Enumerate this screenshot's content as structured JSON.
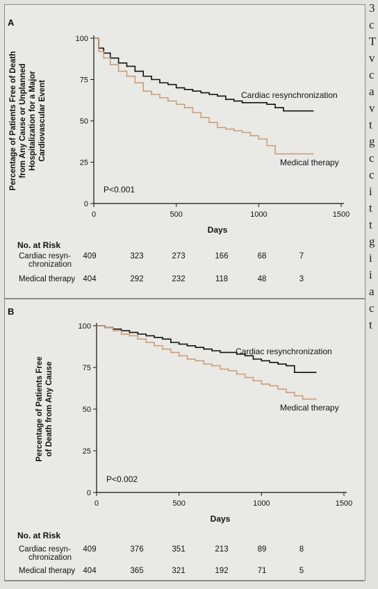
{
  "chart_data": [
    {
      "panel": "A",
      "type": "line",
      "ylabel_lines": [
        "Percentage of Patients Free of Death",
        "from Any Cause or Unplanned",
        "Hospitalization for a Major",
        "Cardiovascular Event"
      ],
      "xlabel": "Days",
      "xlim": [
        0,
        1500
      ],
      "ylim": [
        0,
        100
      ],
      "xticks": [
        0,
        500,
        1000,
        1500
      ],
      "yticks": [
        0,
        25,
        50,
        75,
        100
      ],
      "pvalue": "P<0.001",
      "series": [
        {
          "name": "Cardiac resynchronization",
          "color": "#111111",
          "x": [
            0,
            30,
            60,
            100,
            150,
            200,
            250,
            300,
            350,
            400,
            450,
            500,
            550,
            600,
            650,
            700,
            750,
            800,
            850,
            900,
            950,
            1000,
            1050,
            1100,
            1150,
            1200,
            1250,
            1300,
            1330
          ],
          "y": [
            100,
            94,
            91,
            88,
            85,
            83,
            80,
            77,
            75,
            73,
            72,
            70,
            69,
            68,
            67,
            66,
            65,
            63,
            62,
            61,
            61,
            61,
            60,
            58,
            56,
            56,
            56,
            56,
            56
          ]
        },
        {
          "name": "Medical therapy",
          "color": "#c9966a",
          "x": [
            0,
            30,
            60,
            100,
            150,
            200,
            250,
            300,
            350,
            400,
            450,
            500,
            550,
            600,
            650,
            700,
            750,
            800,
            850,
            900,
            950,
            1000,
            1050,
            1100,
            1150,
            1200,
            1250,
            1300,
            1330
          ],
          "y": [
            100,
            92,
            88,
            84,
            80,
            77,
            73,
            68,
            66,
            64,
            62,
            60,
            58,
            55,
            52,
            49,
            46,
            45,
            44,
            43,
            41,
            39,
            35,
            30,
            30,
            30,
            30,
            30,
            30
          ]
        }
      ],
      "risk_table": {
        "header": "No. at Risk",
        "rows": [
          {
            "label_lines": [
              "Cardiac resyn-",
              "chronization"
            ],
            "values": [
              "409",
              "323",
              "273",
              "166",
              "68",
              "7"
            ]
          },
          {
            "label_lines": [
              "Medical therapy"
            ],
            "values": [
              "404",
              "292",
              "232",
              "118",
              "48",
              "3"
            ]
          }
        ]
      }
    },
    {
      "panel": "B",
      "type": "line",
      "ylabel_lines": [
        "Percentage of Patients Free",
        "of Death from Any Cause"
      ],
      "xlabel": "Days",
      "xlim": [
        0,
        1500
      ],
      "ylim": [
        0,
        100
      ],
      "xticks": [
        0,
        500,
        1000,
        1500
      ],
      "yticks": [
        0,
        25,
        50,
        75,
        100
      ],
      "pvalue": "P<0.002",
      "series": [
        {
          "name": "Cardiac resynchronization",
          "color": "#111111",
          "x": [
            0,
            50,
            100,
            150,
            200,
            250,
            300,
            350,
            400,
            450,
            500,
            550,
            600,
            650,
            700,
            750,
            800,
            850,
            900,
            950,
            1000,
            1050,
            1100,
            1150,
            1200,
            1250,
            1300,
            1330
          ],
          "y": [
            100,
            99,
            98,
            97,
            96,
            95,
            94,
            93,
            92,
            90,
            89,
            88,
            87,
            86,
            85,
            84,
            84,
            83,
            82,
            80,
            79,
            78,
            77,
            76,
            72,
            72,
            72,
            72
          ]
        },
        {
          "name": "Medical therapy",
          "color": "#c9966a",
          "x": [
            0,
            50,
            100,
            150,
            200,
            250,
            300,
            350,
            400,
            450,
            500,
            550,
            600,
            650,
            700,
            750,
            800,
            850,
            900,
            950,
            1000,
            1050,
            1100,
            1150,
            1200,
            1250,
            1300,
            1330
          ],
          "y": [
            100,
            99,
            97,
            95,
            94,
            92,
            90,
            88,
            86,
            84,
            82,
            80,
            79,
            77,
            76,
            74,
            73,
            71,
            69,
            67,
            65,
            64,
            62,
            60,
            58,
            56,
            56,
            56
          ]
        }
      ],
      "risk_table": {
        "header": "No. at Risk",
        "rows": [
          {
            "label_lines": [
              "Cardiac resyn-",
              "chronization"
            ],
            "values": [
              "409",
              "376",
              "351",
              "213",
              "89",
              "8"
            ]
          },
          {
            "label_lines": [
              "Medical therapy"
            ],
            "values": [
              "404",
              "365",
              "321",
              "192",
              "71",
              "5"
            ]
          }
        ]
      }
    }
  ],
  "panels": [
    {
      "letter": "A"
    },
    {
      "letter": "B"
    }
  ],
  "side_text": [
    "3",
    "c",
    "T",
    "v",
    "c",
    "a",
    "v",
    "t",
    "g",
    "c",
    "c",
    "i",
    "t",
    "t",
    "g",
    "i",
    "i",
    "a",
    "c",
    "t"
  ]
}
